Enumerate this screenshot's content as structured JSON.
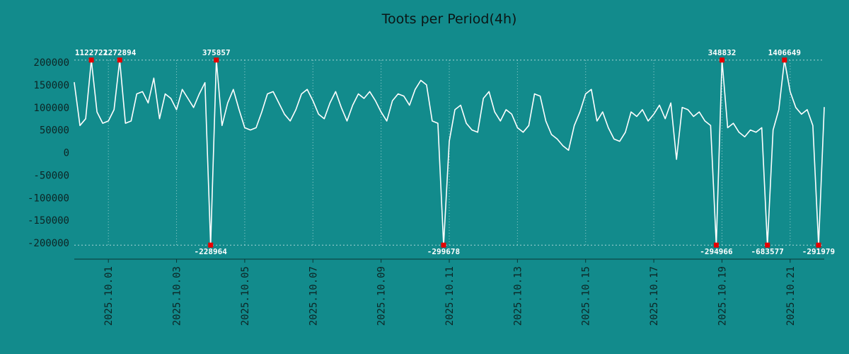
{
  "title": "Toots per Period(4h)",
  "colors": {
    "background": "#128b8c",
    "line": "#ffffff",
    "marker": "#e60000",
    "grid": "#bfe3e3",
    "axis_text": "#0d2525",
    "axis_line": "#0a3535",
    "annotation_text": "#ffffff"
  },
  "chart_data": {
    "type": "line",
    "title": "Toots per Period(4h)",
    "x_start": "2025-09-30 00:00",
    "x_step_hours": 4,
    "grid": "dotted-vertical",
    "legend": "none",
    "y_ticks": [
      200000,
      150000,
      100000,
      50000,
      0,
      -50000,
      -100000,
      -150000,
      -200000
    ],
    "y_tick_labels": [
      "200000",
      "150000",
      "100000",
      "50000",
      "0",
      "-50000",
      "-100000",
      "-150000",
      "-200000"
    ],
    "ylim_display": [
      -205000,
      205000
    ],
    "x_ticks": [
      {
        "index": 6,
        "label": "2025.10.01"
      },
      {
        "index": 18,
        "label": "2025.10.03"
      },
      {
        "index": 30,
        "label": "2025.10.05"
      },
      {
        "index": 42,
        "label": "2025.10.07"
      },
      {
        "index": 54,
        "label": "2025.10.09"
      },
      {
        "index": 66,
        "label": "2025.10.11"
      },
      {
        "index": 78,
        "label": "2025.10.13"
      },
      {
        "index": 90,
        "label": "2025.10.15"
      },
      {
        "index": 102,
        "label": "2025.10.17"
      },
      {
        "index": 114,
        "label": "2025.10.19"
      },
      {
        "index": 126,
        "label": "2025.10.21"
      }
    ],
    "values": [
      155000,
      60000,
      75000,
      1122722,
      90000,
      65000,
      70000,
      95000,
      1272894,
      65000,
      70000,
      130000,
      135000,
      110000,
      165000,
      75000,
      130000,
      120000,
      95000,
      140000,
      120000,
      100000,
      130000,
      155000,
      -228964,
      375857,
      60000,
      110000,
      140000,
      95000,
      55000,
      50000,
      55000,
      90000,
      130000,
      135000,
      110000,
      85000,
      70000,
      95000,
      130000,
      140000,
      115000,
      85000,
      75000,
      110000,
      135000,
      100000,
      70000,
      105000,
      130000,
      120000,
      135000,
      115000,
      90000,
      70000,
      115000,
      130000,
      125000,
      105000,
      140000,
      160000,
      150000,
      70000,
      65000,
      -299678,
      25000,
      95000,
      105000,
      65000,
      50000,
      45000,
      120000,
      135000,
      90000,
      70000,
      95000,
      85000,
      55000,
      45000,
      60000,
      130000,
      125000,
      70000,
      40000,
      30000,
      15000,
      5000,
      60000,
      90000,
      130000,
      140000,
      70000,
      90000,
      55000,
      30000,
      25000,
      45000,
      90000,
      80000,
      95000,
      70000,
      85000,
      105000,
      75000,
      110000,
      -15000,
      100000,
      95000,
      80000,
      90000,
      70000,
      60000,
      -294966,
      348832,
      55000,
      65000,
      45000,
      35000,
      50000,
      45000,
      55000,
      -683577,
      50000,
      95000,
      1406649,
      135000,
      100000,
      85000,
      95000,
      60000,
      -291979,
      100000
    ],
    "annotations": [
      {
        "index": 3,
        "value": 1122722,
        "label": "1122722",
        "side": "top"
      },
      {
        "index": 8,
        "value": 1272894,
        "label": "1272894",
        "side": "top"
      },
      {
        "index": 24,
        "value": -228964,
        "label": "-228964",
        "side": "bottom"
      },
      {
        "index": 25,
        "value": 375857,
        "label": "375857",
        "side": "top"
      },
      {
        "index": 65,
        "value": -299678,
        "label": "-299678",
        "side": "bottom"
      },
      {
        "index": 113,
        "value": -294966,
        "label": "-294966",
        "side": "bottom"
      },
      {
        "index": 114,
        "value": 348832,
        "label": "348832",
        "side": "top"
      },
      {
        "index": 122,
        "value": -683577,
        "label": "-683577",
        "side": "bottom"
      },
      {
        "index": 125,
        "value": 1406649,
        "label": "1406649",
        "side": "top"
      },
      {
        "index": 131,
        "value": -291979,
        "label": "-291979",
        "side": "bottom"
      }
    ]
  }
}
